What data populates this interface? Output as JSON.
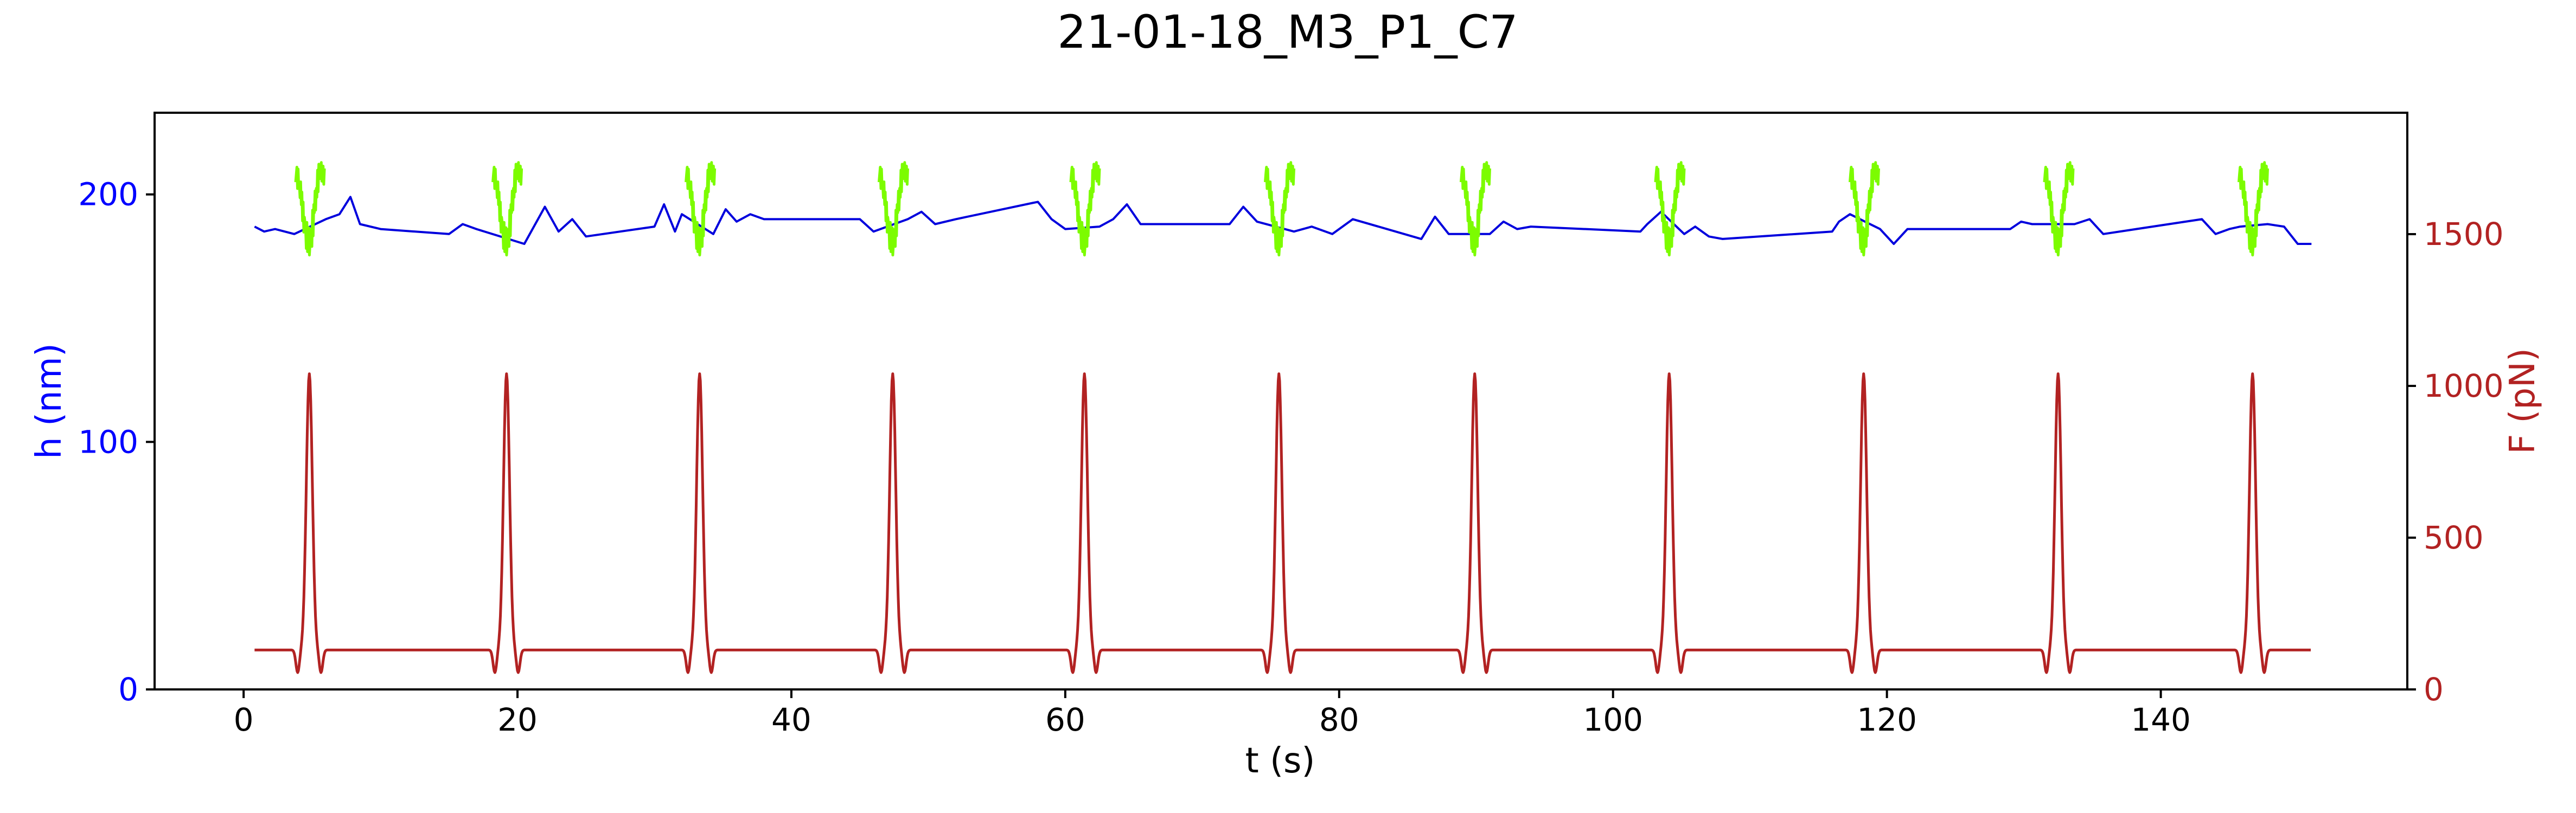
{
  "chart_data": {
    "type": "line",
    "title": "21-01-18_M3_P1_C7",
    "xlabel": "t (s)",
    "ylabel_left": "h (nm)",
    "ylabel_right": "F (pN)",
    "xlim": [
      -6.5,
      158
    ],
    "ylim_left": [
      0,
      233
    ],
    "ylim_right": [
      0,
      1900
    ],
    "xticks": [
      0,
      20,
      40,
      60,
      80,
      100,
      120,
      140
    ],
    "yticks_left": [
      0,
      100,
      200
    ],
    "yticks_right": [
      0,
      500,
      1000,
      1500
    ],
    "grid": false,
    "colors": {
      "height": "#0000dd",
      "height_contact": "#7cfc00",
      "force": "#b22222",
      "left_axis": "#0000ff",
      "right_axis": "#b22222"
    },
    "pulse_times": [
      4.8,
      19.2,
      33.3,
      47.4,
      61.4,
      75.6,
      89.9,
      104.1,
      118.3,
      132.5,
      146.7
    ],
    "height_baseline": [
      [
        0.8,
        187
      ],
      [
        1.5,
        185
      ],
      [
        2.3,
        186
      ],
      [
        3.0,
        185
      ],
      [
        3.7,
        184
      ],
      [
        6.0,
        190
      ],
      [
        7.0,
        192
      ],
      [
        7.8,
        199
      ],
      [
        8.5,
        188
      ],
      [
        10.0,
        186
      ],
      [
        15.0,
        184
      ],
      [
        16.0,
        188
      ],
      [
        17.0,
        186
      ],
      [
        20.5,
        180
      ],
      [
        22.0,
        195
      ],
      [
        23.0,
        185
      ],
      [
        24.0,
        190
      ],
      [
        25.0,
        183
      ],
      [
        30.0,
        187
      ],
      [
        30.7,
        196
      ],
      [
        31.5,
        185
      ],
      [
        32.0,
        192
      ],
      [
        34.3,
        184
      ],
      [
        35.2,
        194
      ],
      [
        36.0,
        189
      ],
      [
        37.0,
        192
      ],
      [
        38.0,
        190
      ],
      [
        45.0,
        190
      ],
      [
        46.0,
        185
      ],
      [
        48.5,
        190
      ],
      [
        49.5,
        193
      ],
      [
        50.5,
        188
      ],
      [
        52.0,
        190
      ],
      [
        58.0,
        197
      ],
      [
        59.0,
        190
      ],
      [
        60.0,
        186
      ],
      [
        62.5,
        187
      ],
      [
        63.5,
        190
      ],
      [
        64.5,
        196
      ],
      [
        65.5,
        188
      ],
      [
        72.0,
        188
      ],
      [
        73.0,
        195
      ],
      [
        74.0,
        189
      ],
      [
        76.7,
        185
      ],
      [
        78.0,
        187
      ],
      [
        79.5,
        184
      ],
      [
        81.0,
        190
      ],
      [
        86.0,
        182
      ],
      [
        87.0,
        191
      ],
      [
        88.0,
        184
      ],
      [
        91.0,
        184
      ],
      [
        92.0,
        189
      ],
      [
        93.0,
        186
      ],
      [
        94.0,
        187
      ],
      [
        102.0,
        185
      ],
      [
        102.5,
        188
      ],
      [
        103.5,
        193
      ],
      [
        105.2,
        184
      ],
      [
        106.0,
        187
      ],
      [
        107.0,
        183
      ],
      [
        108.0,
        182
      ],
      [
        116.0,
        185
      ],
      [
        116.5,
        189
      ],
      [
        117.3,
        192
      ],
      [
        119.5,
        186
      ],
      [
        120.5,
        180
      ],
      [
        121.5,
        186
      ],
      [
        129.0,
        186
      ],
      [
        129.8,
        189
      ],
      [
        130.6,
        188
      ],
      [
        133.7,
        188
      ],
      [
        134.8,
        190
      ],
      [
        135.8,
        184
      ],
      [
        143.0,
        190
      ],
      [
        144.0,
        184
      ],
      [
        145.0,
        186
      ],
      [
        145.8,
        187
      ],
      [
        147.8,
        188
      ],
      [
        149.0,
        187
      ],
      [
        150.0,
        180
      ],
      [
        151.0,
        180
      ]
    ],
    "height_contact_amplitude_nm": 23,
    "force_baseline_pN": 130,
    "force_peak_pN": 1040,
    "force_dip_pN": 55
  }
}
